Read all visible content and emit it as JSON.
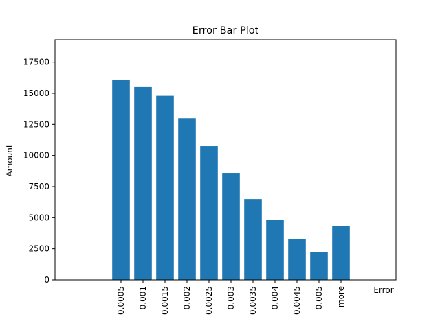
{
  "chart_data": {
    "type": "bar",
    "title": "Error Bar Plot",
    "xlabel": "Error",
    "ylabel": "Amount",
    "categories": [
      "0.0005",
      "0.001",
      "0.0015",
      "0.002",
      "0.0025",
      "0.003",
      "0.0035",
      "0.004",
      "0.0045",
      "0.005",
      "more"
    ],
    "values": [
      16100,
      15500,
      14800,
      13000,
      10750,
      8600,
      6500,
      4800,
      3300,
      2250,
      4350
    ],
    "ylim": [
      0,
      19300
    ],
    "yticks": [
      0,
      2500,
      5000,
      7500,
      10000,
      12500,
      15000,
      17500
    ],
    "ytick_labels": [
      "0",
      "2500",
      "5000",
      "7500",
      "10000",
      "12500",
      "15000",
      "17500"
    ],
    "bar_color": "#1f77b4",
    "grid": false,
    "legend": false
  }
}
